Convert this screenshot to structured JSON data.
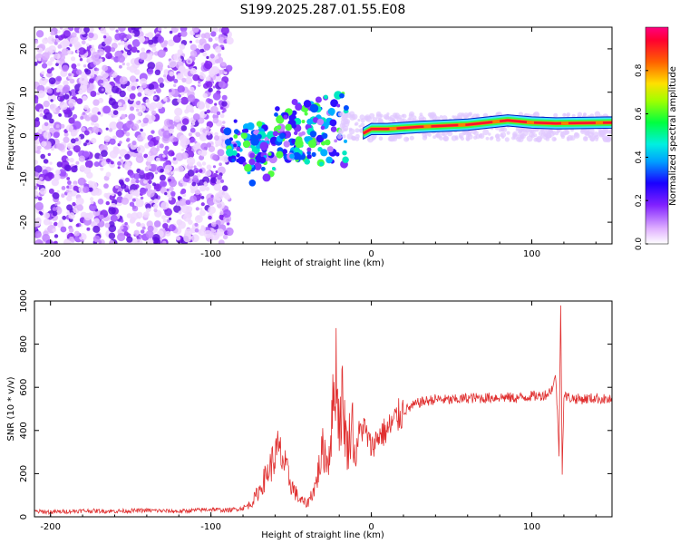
{
  "title": "S199.2025.287.01.55.E08",
  "chart_data": [
    {
      "type": "heatmap",
      "name": "spectrogram",
      "xlabel": "Height of straight line (km)",
      "ylabel": "Frequency (Hz)",
      "xlim": [
        -210,
        150
      ],
      "ylim": [
        -25,
        25
      ],
      "xticks": [
        -200,
        -100,
        0,
        100
      ],
      "yticks": [
        -20,
        -10,
        0,
        10,
        20
      ],
      "colorbar": {
        "label": "Normalized spectral amplitude",
        "range": [
          0,
          1
        ],
        "ticks": [
          "0.0",
          "0.2",
          "0.4",
          "0.6",
          "0.8"
        ],
        "tick_values": [
          0.0,
          0.2,
          0.4,
          0.6,
          0.8
        ],
        "colors": [
          "#ffffff",
          "#b050ff",
          "#3a00ff",
          "#00c8ff",
          "#00ff60",
          "#c8ff00",
          "#ff8000",
          "#ff0040"
        ]
      },
      "ridge": [
        {
          "x": -5,
          "f": 0.5
        },
        {
          "x": 0,
          "f": 1.5
        },
        {
          "x": 10,
          "f": 1.5
        },
        {
          "x": 30,
          "f": 2.0
        },
        {
          "x": 60,
          "f": 2.5
        },
        {
          "x": 85,
          "f": 3.5
        },
        {
          "x": 100,
          "f": 3.0
        },
        {
          "x": 115,
          "f": 2.8
        },
        {
          "x": 150,
          "f": 3.0
        }
      ]
    },
    {
      "type": "line",
      "name": "snr",
      "xlabel": "Height of straight line (km)",
      "ylabel": "SNR (10 * v/v)",
      "xlim": [
        -210,
        150
      ],
      "ylim": [
        0,
        1000
      ],
      "xticks": [
        -200,
        -100,
        0,
        100
      ],
      "yticks": [
        0,
        200,
        400,
        600,
        800,
        1000
      ],
      "color": "#e03030",
      "series": [
        {
          "name": "SNR",
          "x": [
            -210,
            -200,
            -180,
            -160,
            -140,
            -120,
            -100,
            -90,
            -80,
            -75,
            -70,
            -65,
            -60,
            -58,
            -55,
            -50,
            -45,
            -40,
            -35,
            -30,
            -27,
            -25,
            -22,
            -20,
            -18,
            -15,
            -12,
            -10,
            -8,
            -5,
            0,
            5,
            10,
            15,
            20,
            25,
            30,
            40,
            50,
            60,
            70,
            80,
            90,
            100,
            105,
            110,
            113,
            115,
            117,
            118,
            119,
            120,
            125,
            130,
            140,
            150
          ],
          "y": [
            25,
            22,
            28,
            26,
            30,
            25,
            35,
            30,
            40,
            60,
            120,
            200,
            280,
            310,
            260,
            150,
            80,
            60,
            140,
            320,
            250,
            400,
            700,
            420,
            550,
            300,
            460,
            250,
            380,
            420,
            320,
            380,
            400,
            450,
            490,
            510,
            530,
            545,
            540,
            550,
            550,
            555,
            550,
            560,
            560,
            570,
            600,
            650,
            300,
            1000,
            200,
            560,
            550,
            545,
            550,
            540
          ]
        }
      ]
    }
  ]
}
